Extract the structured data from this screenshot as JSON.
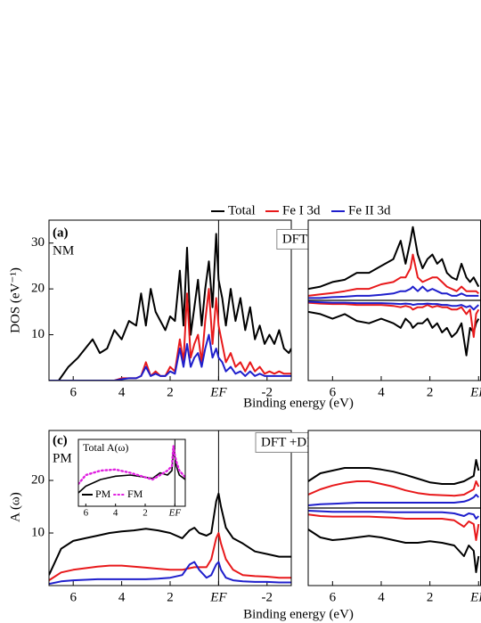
{
  "chart_data": [
    {
      "type": "line",
      "annotations": [
        "(a)",
        "NM",
        "DFT"
      ],
      "ylabel": "DOS (eV⁻¹)",
      "xlabel": "Binding energy (eV)",
      "xlim": [
        7,
        -3
      ],
      "ylim": [
        0,
        35
      ],
      "xticks": [
        6,
        4,
        2,
        {
          "value": 0,
          "label": "EF"
        },
        -2
      ],
      "yticks": [
        10,
        20,
        30
      ],
      "vline": 0,
      "x": [
        7,
        6.6,
        6.2,
        5.8,
        5.5,
        5.2,
        4.9,
        4.6,
        4.3,
        4.0,
        3.7,
        3.4,
        3.2,
        3.0,
        2.8,
        2.6,
        2.4,
        2.2,
        2.0,
        1.8,
        1.6,
        1.45,
        1.3,
        1.15,
        1.0,
        0.85,
        0.7,
        0.55,
        0.4,
        0.25,
        0.1,
        0,
        -0.15,
        -0.3,
        -0.5,
        -0.7,
        -0.9,
        -1.1,
        -1.3,
        -1.5,
        -1.7,
        -1.9,
        -2.1,
        -2.3,
        -2.5,
        -2.7,
        -2.9,
        -3
      ],
      "series": [
        {
          "name": "Total",
          "color": "#000000",
          "values": [
            0,
            0,
            3,
            5,
            7,
            9,
            6,
            7,
            11,
            9,
            13,
            12,
            19,
            12,
            20,
            15,
            13,
            11,
            14,
            13,
            24,
            12,
            29,
            10,
            16,
            22,
            12,
            20,
            26,
            16,
            32,
            22,
            18,
            12,
            20,
            13,
            18,
            11,
            16,
            9,
            12,
            8,
            10,
            8,
            11,
            7,
            6,
            7
          ]
        },
        {
          "name": "Fe I 3d",
          "color": "#e8191b",
          "values": [
            0,
            0,
            0,
            0,
            0,
            0,
            0,
            0,
            0,
            0.5,
            0.5,
            0.5,
            1,
            4,
            1,
            2,
            1,
            1,
            3,
            2,
            9,
            4,
            19,
            5,
            8,
            10,
            4,
            13,
            20,
            8,
            18,
            12,
            8,
            4,
            6,
            3,
            4,
            2,
            4,
            2,
            3,
            1.5,
            2,
            1.5,
            2,
            1.5,
            1.5,
            1.5
          ]
        },
        {
          "name": "Fe II 3d",
          "color": "#1f1fcc",
          "values": [
            0,
            0,
            0,
            0,
            0,
            0,
            0,
            0,
            0,
            0.3,
            0.5,
            0.5,
            1,
            3,
            1,
            1.5,
            1,
            1,
            2,
            1.5,
            7,
            3,
            8,
            3,
            5,
            6,
            3,
            7,
            10,
            5,
            7,
            5,
            4,
            2,
            3,
            1.5,
            2,
            1,
            2,
            1,
            1.5,
            1,
            1,
            1,
            1,
            1,
            1,
            1
          ]
        }
      ]
    },
    {
      "type": "line",
      "xlim": [
        7,
        -0.1
      ],
      "ylim": [
        -17.5,
        17.5
      ],
      "xticks": [
        6,
        4,
        2,
        {
          "value": 0,
          "label": "EF"
        }
      ],
      "hline": 0,
      "x": [
        7,
        6.5,
        6,
        5.5,
        5,
        4.5,
        4,
        3.5,
        3.2,
        3.0,
        2.8,
        2.7,
        2.5,
        2.3,
        2.1,
        1.9,
        1.7,
        1.5,
        1.3,
        1.1,
        0.9,
        0.7,
        0.5,
        0.35,
        0.2,
        0.1,
        0
      ],
      "series": [
        {
          "color": "#000000",
          "values": [
            2.5,
            3,
            4,
            4.5,
            6,
            6,
            7.5,
            9,
            13,
            8,
            13,
            16,
            10,
            7,
            9,
            10,
            8,
            9,
            6,
            5,
            4.5,
            8,
            5,
            4,
            5,
            4,
            3
          ]
        },
        {
          "color": "#e8191b",
          "values": [
            1,
            1.3,
            1.6,
            2,
            2.5,
            2.5,
            3.5,
            4,
            5,
            5,
            7,
            10,
            5,
            4,
            4.5,
            5,
            5,
            4,
            3,
            2.5,
            2,
            3,
            2,
            2,
            2,
            2,
            1.5
          ]
        },
        {
          "color": "#1f1fcc",
          "values": [
            0.5,
            0.5,
            0.7,
            0.8,
            1,
            1,
            1.2,
            1.5,
            2,
            2,
            2.5,
            3,
            2,
            3,
            2,
            2.5,
            2,
            1.5,
            1.5,
            1,
            1,
            1.5,
            1,
            1,
            1,
            1,
            1
          ]
        },
        {
          "color": "#000000",
          "values": [
            -2.5,
            -3,
            -4,
            -3,
            -4.5,
            -5,
            -4,
            -5,
            -6,
            -4,
            -5,
            -6,
            -5,
            -5,
            -4,
            -6,
            -5,
            -7,
            -6,
            -8,
            -7,
            -5,
            -12,
            -6,
            -7,
            -5,
            -4
          ]
        },
        {
          "color": "#e8191b",
          "values": [
            -0.5,
            -0.7,
            -0.8,
            -0.8,
            -1,
            -1,
            -1,
            -1.2,
            -1.5,
            -1.2,
            -1.5,
            -2,
            -1.5,
            -1.5,
            -1,
            -1.5,
            -1.2,
            -1.5,
            -1.5,
            -2,
            -2,
            -1.5,
            -3,
            -2,
            -8,
            -3,
            -2
          ]
        },
        {
          "color": "#1f1fcc",
          "values": [
            -0.3,
            -0.4,
            -0.5,
            -0.5,
            -0.6,
            -0.6,
            -0.6,
            -0.7,
            -0.8,
            -0.7,
            -0.8,
            -1,
            -0.8,
            -0.8,
            -0.7,
            -0.8,
            -0.8,
            -1,
            -1,
            -1.2,
            -1.2,
            -1,
            -1.5,
            -1.2,
            -2,
            -1.5,
            -1
          ]
        }
      ]
    },
    {
      "type": "line",
      "annotations": [
        "(c)",
        "PM",
        "DFT +DMFT"
      ],
      "ylabel": "A (ω)",
      "xlabel": "Binding energy (eV)",
      "xlim": [
        7,
        -3
      ],
      "ylim": [
        0,
        29.5
      ],
      "xticks": [
        6,
        4,
        2,
        {
          "value": 0,
          "label": "EF"
        },
        -2
      ],
      "yticks": [
        10,
        20
      ],
      "vline": 0,
      "x": [
        7,
        6.5,
        6,
        5.5,
        5,
        4.5,
        4,
        3.5,
        3,
        2.5,
        2,
        1.5,
        1.2,
        1.0,
        0.8,
        0.5,
        0.3,
        0.1,
        0,
        -0.1,
        -0.3,
        -0.6,
        -1,
        -1.5,
        -2,
        -2.5,
        -3
      ],
      "series": [
        {
          "color": "#000000",
          "values": [
            2,
            7,
            8.5,
            9,
            9.5,
            10,
            10.3,
            10.5,
            10.8,
            10.5,
            10,
            9,
            10.5,
            11,
            10,
            9.5,
            10,
            16,
            17.5,
            15,
            11,
            9,
            8,
            6.5,
            6,
            5.5,
            5.5
          ]
        },
        {
          "color": "#e8191b",
          "values": [
            1,
            2.5,
            3,
            3.3,
            3.6,
            3.8,
            3.8,
            3.6,
            3.4,
            3.2,
            3,
            3,
            3.3,
            3.5,
            3.5,
            3.5,
            5,
            9,
            10,
            8,
            5,
            3,
            2,
            1.8,
            1.7,
            1.5,
            1.5
          ]
        },
        {
          "color": "#1f1fcc",
          "values": [
            0.3,
            0.8,
            1,
            1.1,
            1.2,
            1.2,
            1.2,
            1.2,
            1.2,
            1.3,
            1.5,
            2,
            4,
            4.5,
            3,
            1.5,
            2,
            4,
            4.5,
            3,
            1.5,
            1,
            0.8,
            0.7,
            0.7,
            0.6,
            0.6
          ]
        }
      ]
    },
    {
      "type": "line",
      "xlim": [
        7,
        -0.1
      ],
      "ylim": [
        -14.5,
        14.5
      ],
      "xticks": [
        6,
        4,
        2,
        {
          "value": 0,
          "label": "EF"
        }
      ],
      "hline": 0,
      "x": [
        7,
        6.5,
        6,
        5.5,
        5,
        4.5,
        4,
        3.5,
        3,
        2.5,
        2,
        1.5,
        1,
        0.6,
        0.4,
        0.2,
        0.1,
        0
      ],
      "series": [
        {
          "color": "#000000",
          "values": [
            5,
            6.5,
            7,
            7.5,
            7.5,
            7.5,
            7.2,
            6.8,
            6.2,
            5.5,
            4.8,
            4.5,
            4.5,
            5,
            5.5,
            6,
            9,
            7
          ]
        },
        {
          "color": "#e8191b",
          "values": [
            2.5,
            3.5,
            4.2,
            4.7,
            5,
            5,
            4.5,
            4,
            3.3,
            2.8,
            2.5,
            2.4,
            2.3,
            2.5,
            3,
            3.5,
            5,
            4
          ]
        },
        {
          "color": "#1f1fcc",
          "values": [
            0.5,
            0.7,
            0.8,
            0.9,
            1,
            1,
            1,
            1,
            1,
            1,
            1,
            1,
            1,
            1.2,
            1.5,
            2,
            2.5,
            2
          ]
        },
        {
          "color": "#000000",
          "values": [
            -4,
            -5.5,
            -6,
            -5.8,
            -5.5,
            -5.2,
            -5.5,
            -6,
            -6.5,
            -6.5,
            -6.2,
            -6.5,
            -7,
            -9,
            -7,
            -8,
            -12,
            -9
          ]
        },
        {
          "color": "#e8191b",
          "values": [
            -1.2,
            -1.5,
            -1.6,
            -1.6,
            -1.6,
            -1.6,
            -1.7,
            -1.8,
            -2,
            -2,
            -2,
            -2,
            -2.3,
            -3.5,
            -2.5,
            -3,
            -6,
            -3
          ]
        },
        {
          "color": "#1f1fcc",
          "values": [
            -0.5,
            -0.6,
            -0.7,
            -0.7,
            -0.7,
            -0.7,
            -0.7,
            -0.8,
            -0.8,
            -0.8,
            -0.8,
            -0.8,
            -1,
            -1.5,
            -1,
            -1.2,
            -2,
            -1.5
          ]
        }
      ]
    },
    {
      "type": "line",
      "title": "Total A(ω)",
      "xlim": [
        6.5,
        -0.7
      ],
      "ylim": [
        0,
        30
      ],
      "xticks": [
        6,
        4,
        2,
        {
          "value": 0,
          "label": "EF"
        }
      ],
      "vline": 0,
      "x": [
        6.5,
        6,
        5,
        4,
        3,
        2,
        1.5,
        1,
        0.5,
        0.2,
        0.1,
        0,
        -0.1,
        -0.3,
        -0.7
      ],
      "series": [
        {
          "name": "PM",
          "color": "#000000",
          "values": [
            6,
            9,
            12,
            13.5,
            14,
            13,
            12.5,
            15,
            14,
            16,
            25,
            22,
            18,
            14,
            12
          ]
        },
        {
          "name": "FM",
          "color": "#e020e0",
          "style": "dotted",
          "values": [
            10,
            14,
            16,
            16.5,
            15,
            13,
            12,
            14,
            16,
            18,
            27,
            23,
            20,
            16,
            13
          ]
        }
      ]
    }
  ]
}
